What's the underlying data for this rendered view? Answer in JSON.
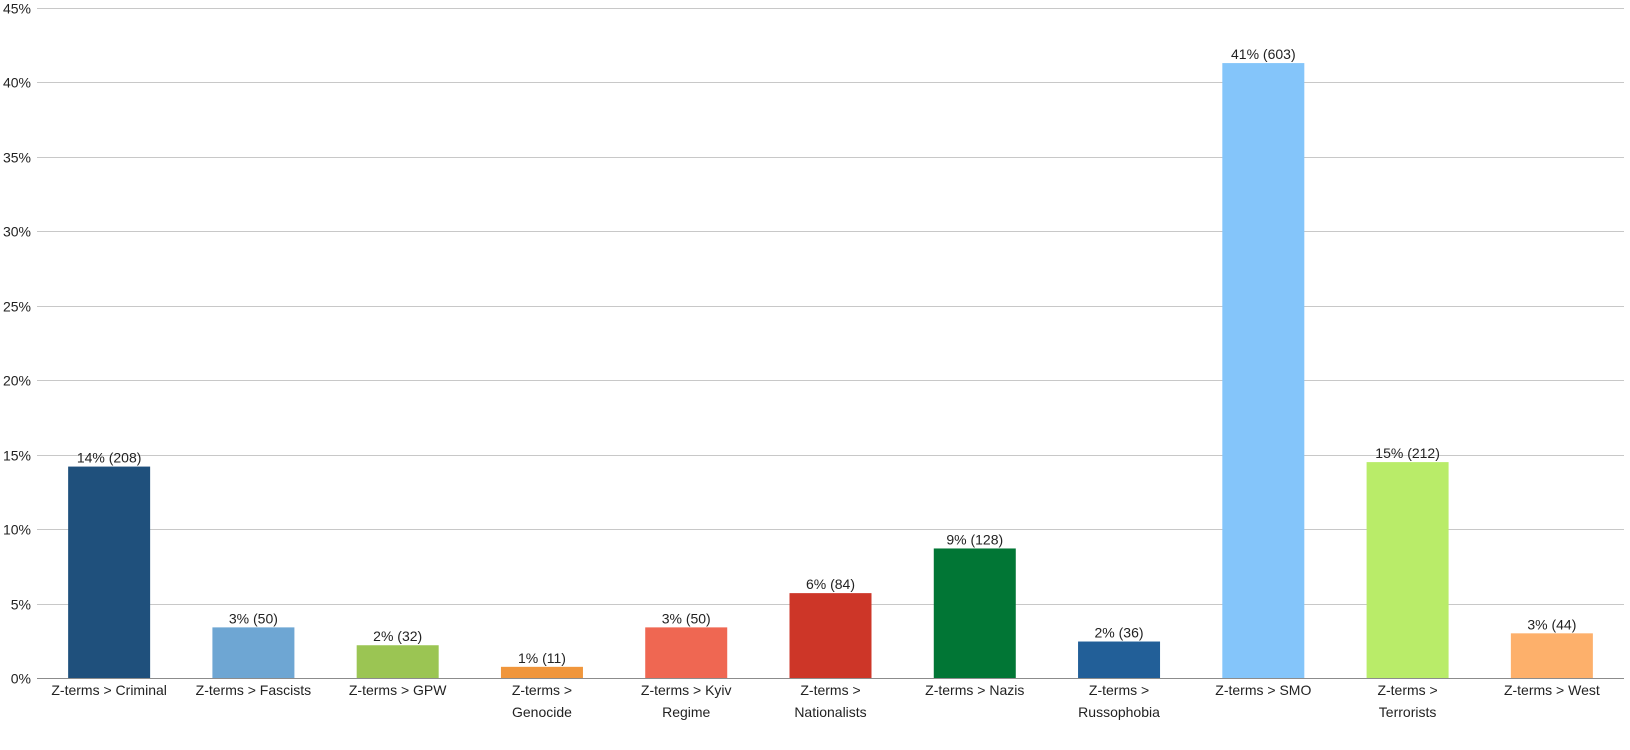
{
  "chart_data": {
    "type": "bar",
    "categories": [
      "Z-terms > Criminal",
      "Z-terms > Fascists",
      "Z-terms > GPW",
      "Z-terms > Genocide",
      "Z-terms > Kyiv Regime",
      "Z-terms > Nationalists",
      "Z-terms > Nazis",
      "Z-terms > Russophobia",
      "Z-terms > SMO",
      "Z-terms > Terrorists",
      "Z-terms > West"
    ],
    "category_lines": [
      [
        "Z-terms > Criminal"
      ],
      [
        "Z-terms > Fascists"
      ],
      [
        "Z-terms > GPW"
      ],
      [
        "Z-terms >",
        "Genocide"
      ],
      [
        "Z-terms > Kyiv",
        "Regime"
      ],
      [
        "Z-terms >",
        "Nationalists"
      ],
      [
        "Z-terms > Nazis"
      ],
      [
        "Z-terms >",
        "Russophobia"
      ],
      [
        "Z-terms > SMO"
      ],
      [
        "Z-terms >",
        "Terrorists"
      ],
      [
        "Z-terms > West"
      ]
    ],
    "values": [
      14.2,
      3.4,
      2.2,
      0.75,
      3.4,
      5.7,
      8.7,
      2.45,
      41.3,
      14.5,
      3.0
    ],
    "data_labels": [
      "14% (208)",
      "3% (50)",
      "2% (32)",
      "1% (11)",
      "3% (50)",
      "6% (84)",
      "9% (128)",
      "2% (36)",
      "41% (603)",
      "15% (212)",
      "3% (44)"
    ],
    "colors": [
      "#1f507c",
      "#6ea6d3",
      "#9bc553",
      "#f0963c",
      "#ef6752",
      "#cd3628",
      "#017635",
      "#225f98",
      "#84c5fa",
      "#b9ec69",
      "#fdb06b"
    ],
    "ylim": [
      0,
      45
    ],
    "y_ticks": [
      0,
      5,
      10,
      15,
      20,
      25,
      30,
      35,
      40,
      45
    ],
    "y_tick_labels": [
      "0%",
      "5%",
      "10%",
      "15%",
      "20%",
      "25%",
      "30%",
      "35%",
      "40%",
      "45%"
    ],
    "title": "",
    "xlabel": "",
    "ylabel": "",
    "grid": true,
    "legend": "none"
  }
}
